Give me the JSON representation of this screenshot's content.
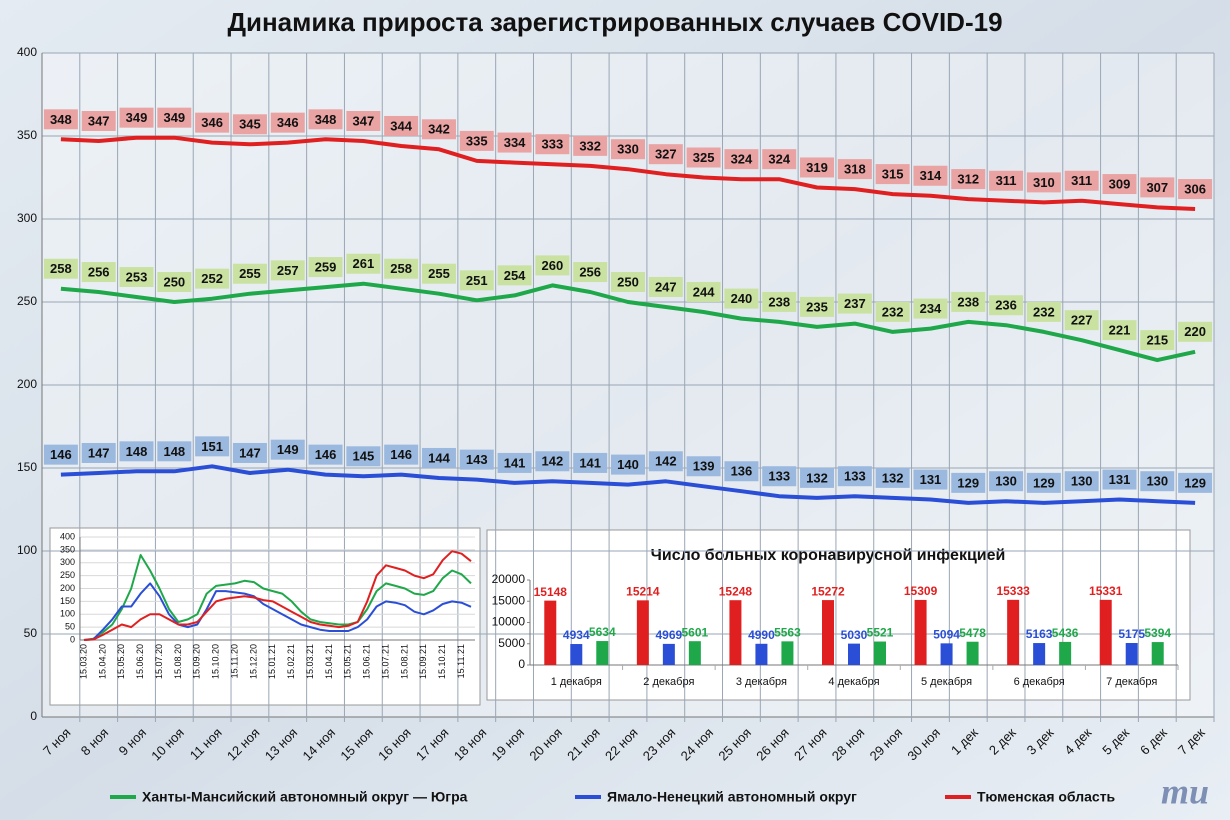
{
  "logo": "mu",
  "chart_data": [
    {
      "type": "line",
      "title": "Динамика прироста зарегистрированных случаев COVID-19",
      "categories": [
        "7 ноя",
        "8 ноя",
        "9 ноя",
        "10 ноя",
        "11 ноя",
        "12 ноя",
        "13 ноя",
        "14 ноя",
        "15 ноя",
        "16 ноя",
        "17 ноя",
        "18 ноя",
        "19 ноя",
        "20 ноя",
        "21 ноя",
        "22 ноя",
        "23 ноя",
        "24 ноя",
        "25 ноя",
        "26 ноя",
        "27 ноя",
        "28 ноя",
        "29 ноя",
        "30 ноя",
        "1 дек",
        "2 дек",
        "3 дек",
        "4 дек",
        "5 дек",
        "6 дек",
        "7 дек"
      ],
      "series": [
        {
          "name": "Ханты-Мансийский автономный округ — Югра",
          "color": "#1fa84a",
          "label_fill": "#c9e2a2",
          "values": [
            258,
            256,
            253,
            250,
            252,
            255,
            257,
            259,
            261,
            258,
            255,
            251,
            254,
            260,
            256,
            250,
            247,
            244,
            240,
            238,
            235,
            237,
            232,
            234,
            238,
            236,
            232,
            227,
            221,
            215,
            220
          ]
        },
        {
          "name": "Ямало-Ненецкий автономный округ",
          "color": "#2a4fd6",
          "label_fill": "#9bb9de",
          "values": [
            146,
            147,
            148,
            148,
            151,
            147,
            149,
            146,
            145,
            146,
            144,
            143,
            141,
            142,
            141,
            140,
            142,
            139,
            136,
            133,
            132,
            133,
            132,
            131,
            129,
            130,
            129,
            130,
            131,
            130,
            129
          ]
        },
        {
          "name": "Тюменская область",
          "color": "#e02020",
          "label_fill": "#e9a3a3",
          "values": [
            348,
            347,
            349,
            349,
            346,
            345,
            346,
            348,
            347,
            344,
            342,
            335,
            334,
            333,
            332,
            330,
            327,
            325,
            324,
            324,
            319,
            318,
            315,
            314,
            312,
            311,
            310,
            311,
            309,
            307,
            306
          ]
        }
      ],
      "ylim": [
        0,
        400
      ],
      "yticks": [
        0,
        50,
        100,
        150,
        200,
        250,
        300,
        350,
        400
      ],
      "grid": true,
      "data_labels": true,
      "legend": "bottom"
    },
    {
      "type": "line",
      "categories": [
        "15.03.20",
        null,
        "15.04.20",
        null,
        "15.05.20",
        null,
        "15.06.20",
        null,
        "15.07.20",
        null,
        "15.08.20",
        null,
        "15.09.20",
        null,
        "15.10.20",
        null,
        "15.11.20",
        null,
        "15.12.20",
        null,
        "15.01.21",
        null,
        "15.02.21",
        null,
        "15.03.21",
        null,
        "15.04.21",
        null,
        "15.05.21",
        null,
        "15.06.21",
        null,
        "15.07.21",
        null,
        "15.08.21",
        null,
        "15.09.21",
        null,
        "15.10.21",
        null,
        "15.11.21",
        null
      ],
      "series": [
        {
          "color": "#1fa84a",
          "values": [
            0,
            5,
            30,
            60,
            120,
            200,
            330,
            270,
            200,
            120,
            70,
            80,
            100,
            180,
            210,
            215,
            220,
            230,
            225,
            200,
            190,
            180,
            150,
            110,
            80,
            70,
            65,
            60,
            60,
            70,
            120,
            190,
            220,
            210,
            200,
            180,
            175,
            190,
            240,
            270,
            255,
            220
          ]
        },
        {
          "color": "#2a4fd6",
          "values": [
            0,
            3,
            40,
            80,
            130,
            130,
            180,
            220,
            170,
            100,
            60,
            50,
            60,
            120,
            190,
            190,
            185,
            180,
            170,
            140,
            120,
            100,
            80,
            60,
            50,
            40,
            35,
            35,
            35,
            50,
            80,
            130,
            150,
            145,
            135,
            110,
            100,
            115,
            140,
            150,
            145,
            129
          ]
        },
        {
          "color": "#e02020",
          "values": [
            0,
            2,
            20,
            40,
            60,
            50,
            80,
            100,
            100,
            80,
            60,
            60,
            70,
            110,
            150,
            160,
            165,
            170,
            165,
            155,
            150,
            130,
            110,
            90,
            70,
            60,
            55,
            50,
            55,
            70,
            150,
            250,
            290,
            280,
            270,
            250,
            240,
            255,
            310,
            345,
            335,
            306
          ]
        }
      ],
      "ylim": [
        0,
        400
      ],
      "yticks": [
        0,
        50,
        100,
        150,
        200,
        250,
        300,
        350,
        400
      ],
      "grid": true
    },
    {
      "type": "bar",
      "title": "Число больных коронавирусной  инфекцией",
      "categories": [
        "1 декабря",
        "2 декабря",
        "3 декабря",
        "4 декабря",
        "5 декабря",
        "6 декабря",
        "7 декабря"
      ],
      "series": [
        {
          "color": "#e02020",
          "values": [
            15148,
            15214,
            15248,
            15272,
            15309,
            15333,
            15331
          ]
        },
        {
          "color": "#2a4fd6",
          "values": [
            4934,
            4969,
            4990,
            5030,
            5094,
            5163,
            5175
          ]
        },
        {
          "color": "#1fa84a",
          "values": [
            5634,
            5601,
            5563,
            5521,
            5478,
            5436,
            5394
          ]
        }
      ],
      "ylim": [
        0,
        20000
      ],
      "yticks": [
        0,
        5000,
        10000,
        15000,
        20000
      ],
      "grid": false,
      "data_labels": true
    }
  ]
}
